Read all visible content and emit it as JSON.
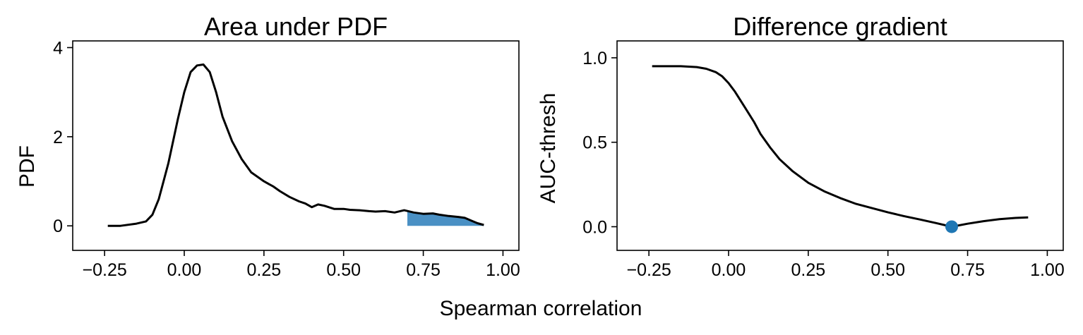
{
  "figure": {
    "shared_xlabel": "Spearman correlation"
  },
  "chart_data": [
    {
      "type": "area",
      "title": "Area under PDF",
      "xlabel": "",
      "ylabel": "PDF",
      "xlim": [
        -0.35,
        1.05
      ],
      "ylim": [
        -0.55,
        4.15
      ],
      "xticks": [
        -0.25,
        0.0,
        0.25,
        0.5,
        0.75,
        1.0
      ],
      "xtick_labels": [
        "−0.25",
        "0.00",
        "0.25",
        "0.50",
        "0.75",
        "1.00"
      ],
      "yticks": [
        0,
        2,
        4
      ],
      "ytick_labels": [
        "0",
        "2",
        "4"
      ],
      "curve_color": "#000000",
      "fill_color": "#4a90c4",
      "shaded_region": {
        "x_start": 0.7,
        "x_end": 0.94
      },
      "x": [
        -0.24,
        -0.2,
        -0.15,
        -0.12,
        -0.1,
        -0.08,
        -0.05,
        -0.02,
        0.0,
        0.02,
        0.04,
        0.06,
        0.08,
        0.1,
        0.12,
        0.15,
        0.18,
        0.21,
        0.25,
        0.28,
        0.3,
        0.33,
        0.36,
        0.38,
        0.4,
        0.42,
        0.44,
        0.47,
        0.5,
        0.52,
        0.55,
        0.58,
        0.6,
        0.63,
        0.66,
        0.69,
        0.72,
        0.75,
        0.78,
        0.8,
        0.83,
        0.86,
        0.88,
        0.9,
        0.92,
        0.94
      ],
      "y": [
        0.0,
        0.0,
        0.05,
        0.1,
        0.25,
        0.6,
        1.4,
        2.4,
        3.0,
        3.45,
        3.6,
        3.62,
        3.45,
        3.0,
        2.45,
        1.9,
        1.5,
        1.2,
        1.0,
        0.88,
        0.78,
        0.65,
        0.55,
        0.5,
        0.42,
        0.48,
        0.45,
        0.38,
        0.38,
        0.36,
        0.35,
        0.33,
        0.32,
        0.33,
        0.3,
        0.35,
        0.3,
        0.27,
        0.28,
        0.25,
        0.22,
        0.2,
        0.18,
        0.12,
        0.06,
        0.02
      ]
    },
    {
      "type": "line",
      "title": "Difference gradient",
      "xlabel": "",
      "ylabel": "AUC-thresh",
      "xlim": [
        -0.35,
        1.05
      ],
      "ylim": [
        -0.14,
        1.1
      ],
      "xticks": [
        -0.25,
        0.0,
        0.25,
        0.5,
        0.75,
        1.0
      ],
      "xtick_labels": [
        "−0.25",
        "0.00",
        "0.25",
        "0.50",
        "0.75",
        "1.00"
      ],
      "yticks": [
        0.0,
        0.5,
        1.0
      ],
      "ytick_labels": [
        "0.0",
        "0.5",
        "1.0"
      ],
      "curve_color": "#000000",
      "marker_color": "#1f77b4",
      "marker": {
        "x": 0.7,
        "y": 0.0
      },
      "x": [
        -0.24,
        -0.2,
        -0.15,
        -0.1,
        -0.07,
        -0.04,
        -0.02,
        0.0,
        0.02,
        0.05,
        0.08,
        0.1,
        0.13,
        0.16,
        0.2,
        0.25,
        0.3,
        0.35,
        0.4,
        0.45,
        0.5,
        0.55,
        0.6,
        0.65,
        0.7,
        0.75,
        0.8,
        0.85,
        0.9,
        0.94
      ],
      "y": [
        0.95,
        0.95,
        0.95,
        0.945,
        0.935,
        0.915,
        0.89,
        0.85,
        0.8,
        0.71,
        0.62,
        0.55,
        0.47,
        0.4,
        0.33,
        0.26,
        0.21,
        0.17,
        0.135,
        0.11,
        0.085,
        0.063,
        0.043,
        0.022,
        0.0,
        0.018,
        0.033,
        0.045,
        0.052,
        0.055
      ]
    }
  ]
}
